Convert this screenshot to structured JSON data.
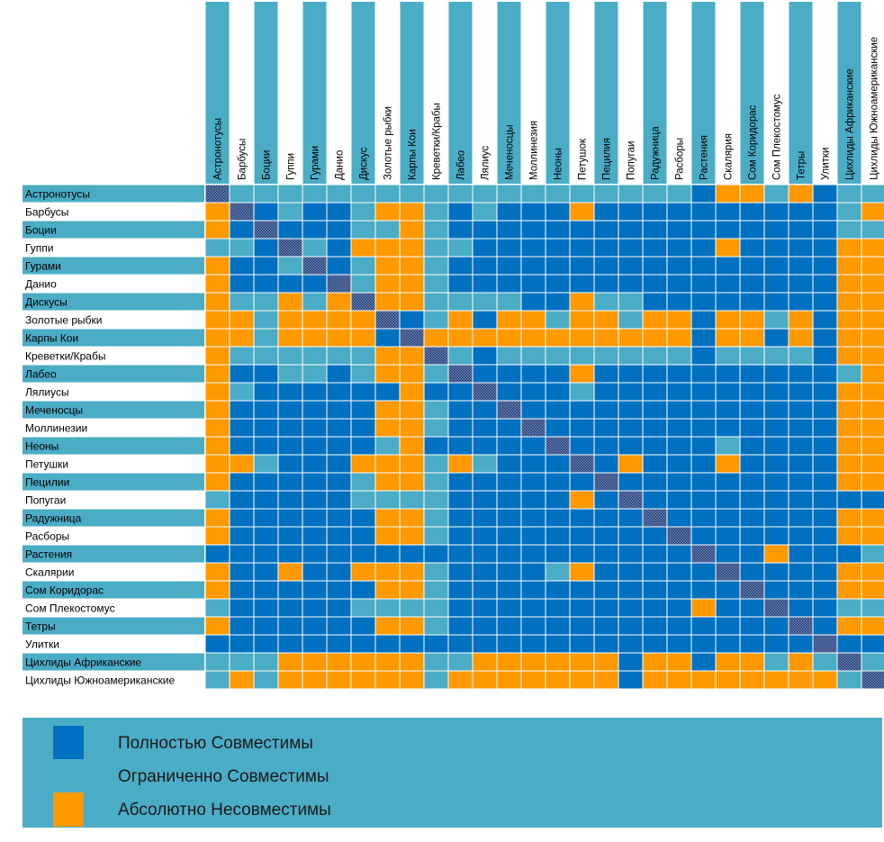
{
  "colors": {
    "full": "#0070c0",
    "limited": "#4bacc6",
    "none": "#ff9900",
    "self": "#1f3a6e",
    "grid": "#ffffff",
    "background": "#ffffff",
    "text": "#000000",
    "legend_bg": "#4bacc6"
  },
  "legend": [
    {
      "key": "full",
      "label": "Полностью Совместимы"
    },
    {
      "key": "limited",
      "label": "Ограниченно Совместимы"
    },
    {
      "key": "none",
      "label": "Абсолютно Несовместимы"
    }
  ],
  "chart_data": {
    "type": "heatmap",
    "title": "",
    "species": [
      "Астронотусы",
      "Барбусы",
      "Боции",
      "Гуппи",
      "Гурами",
      "Данио",
      "Дискусы",
      "Золотые рыбки",
      "Карпы Кои",
      "Креветки/Крабы",
      "Лабео",
      "Лялиусы",
      "Меченосцы",
      "Моллинезии",
      "Неоны",
      "Петушки",
      "Пецилии",
      "Попугаи",
      "Радужница",
      "Расборы",
      "Растения",
      "Скалярии",
      "Сом Коридорас",
      "Сом Плекостомус",
      "Тетры",
      "Улитки",
      "Цихлиды Африканские",
      "Цихлиды Южноамериканские"
    ],
    "column_labels": [
      "Астронотусы",
      "Барбусы",
      "Боции",
      "Гуппи",
      "Гурами",
      "Данио",
      "Дискус",
      "Золотые рыбки",
      "Карпы Кои",
      "Креветки/Крабы",
      "Лабео",
      "Лялиус",
      "Меченосцы",
      "Моллинезия",
      "Неоны",
      "Петушок",
      "Пецилия",
      "Попугаи",
      "Радужница",
      "Расборы",
      "Растения",
      "Скалярия",
      "Сом Коридорас",
      "Сом Плекостомус",
      "Тетры",
      "Улитки",
      "Цихлиды Африканские",
      "Цихлиды Южноамериканские"
    ],
    "value_key": {
      "F": "full",
      "L": "limited",
      "N": "none",
      "X": "self"
    },
    "matrix": [
      "XLLLLLLLLLLLLLLLLLLLFNNLNFLL",
      "NXFLFFLNNLFLFFFNFFFFFFFFFFLN",
      "NFXFFFLLNLFFFFFFFFFFFFFFFFLL",
      "LLFXLFNNNLLFFFFFFFFFFNFFFFNN",
      "NFFLXFLNNLFFFFFFFFFFFFFFFFNN",
      "NFFFFXLNNLFFFFFFFFFFFFFFFFNN",
      "NLLNLNXNNLLLLFFNLLFFFFFFFFNN",
      "NNLNNNNXFLNFNNLNNLNNFNNLNFNN",
      "NNLNNNNFXNNNNNNNNNNNFNNFNFNN",
      "NLLLLLLNNXLFLLLLLLLLFLLLLFNN",
      "NFFLLFLNNLXFFFFNFFFFFFFFFFLN",
      "NLFFFFFFNFFXFFFLFFFFFFFFFFNN",
      "NFFFFFFNNLFFXFFFFFFFFFFFFFNN",
      "NFFFFFFNNLFFFXFFFFFFFFFFFFNN",
      "NFFFFFFLNFFFFFXFFFFFFLFFFFNN",
      "NNLFFFNNNLNLFFFXFNFFFNFFFFNN",
      "NFFFFFLNNLFFFFFFXFFFFFFFFFNN",
      "LFFFFFLLLLFFFFFNFXFFFFFFFFFF",
      "NFFFFFFNNLFFFFFFFFXFFFFFFFNN",
      "NFFFFFFNNLFFFFFFFFFXFFFFFFNN",
      "FFFFFFFFFFFFFFFFFFFFXFFNFFFL",
      "NFFNFFNNNLFFFFLNFFFFFXFFFFNN",
      "NFFFFFFNNLFFFFFFFFFFFFXFFFNN",
      "LFFFFFLLLLFFFFFFFFFFNFFXFFLL",
      "NFFFFFFNNLFFFFFFFFFFFFFFXFNN",
      "FFFFFFFFFFFFFFFFFFFFFFFFFXFF",
      "LLLNNNNNNLLNNNNNNFNNFNNLNLXL",
      "LNLNNNNNNLNNNNNNNFNNNNNNNNLX"
    ]
  }
}
